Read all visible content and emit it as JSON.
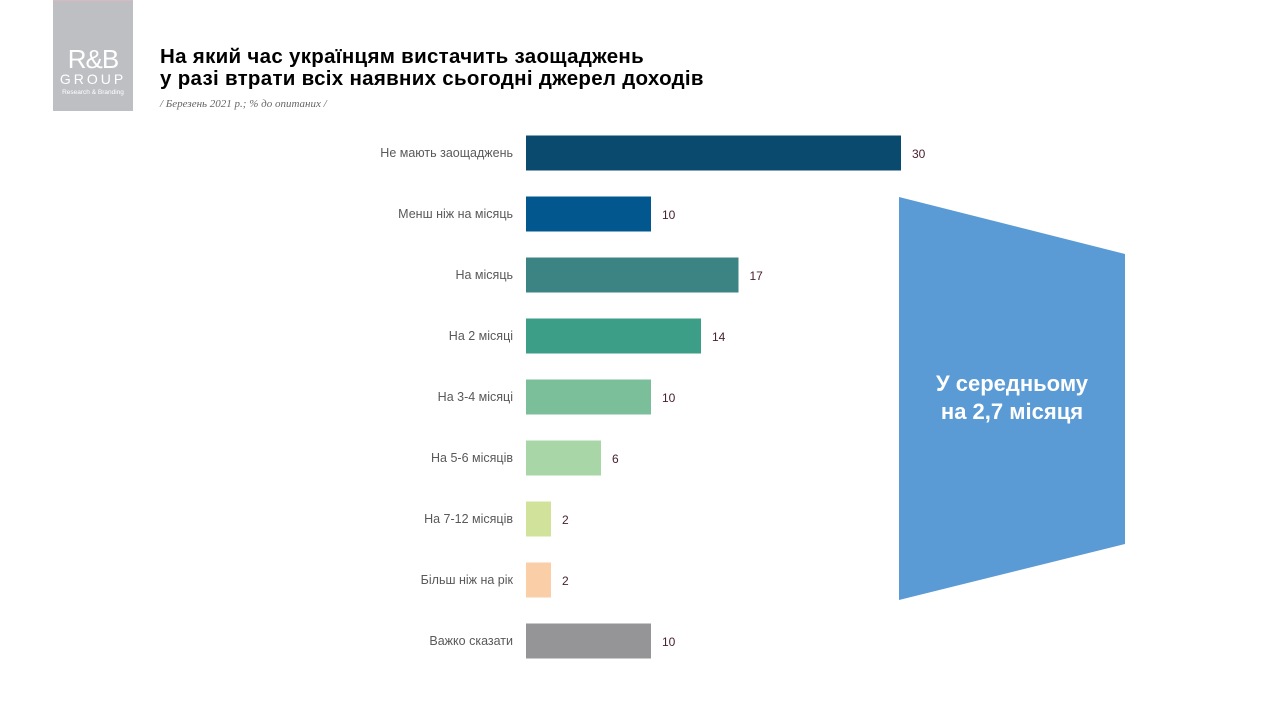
{
  "logo": {
    "main": "R&B",
    "group": "GROUP",
    "tagline": "Research & Branding"
  },
  "header": {
    "title_line1": "На який час українцям вистачить заощаджень",
    "title_line2": "у разі втрати всіх наявних сьогодні джерел доходів",
    "subtitle": "/ Березень 2021 р.; % до опитаних /"
  },
  "callout": {
    "line1": "У середньому",
    "line2": "на 2,7 місяця",
    "color": "#5b9bd5"
  },
  "chart_data": {
    "type": "bar",
    "orientation": "horizontal",
    "categories": [
      "Не мають заощаджень",
      "Менш ніж на місяць",
      "На місяць",
      "На 2 місяці",
      "На 3-4 місяці",
      "На 5-6 місяців",
      "На 7-12 місяців",
      "Більш ніж на рік",
      "Важко сказати"
    ],
    "values": [
      30,
      10,
      17,
      14,
      10,
      6,
      2,
      2,
      10
    ],
    "colors": [
      "#0b4a6f",
      "#02588e",
      "#3b8483",
      "#3c9e86",
      "#7bbf9a",
      "#a9d6a7",
      "#d1e39b",
      "#facfa7",
      "#959598"
    ],
    "unit": "%",
    "grid": false
  }
}
